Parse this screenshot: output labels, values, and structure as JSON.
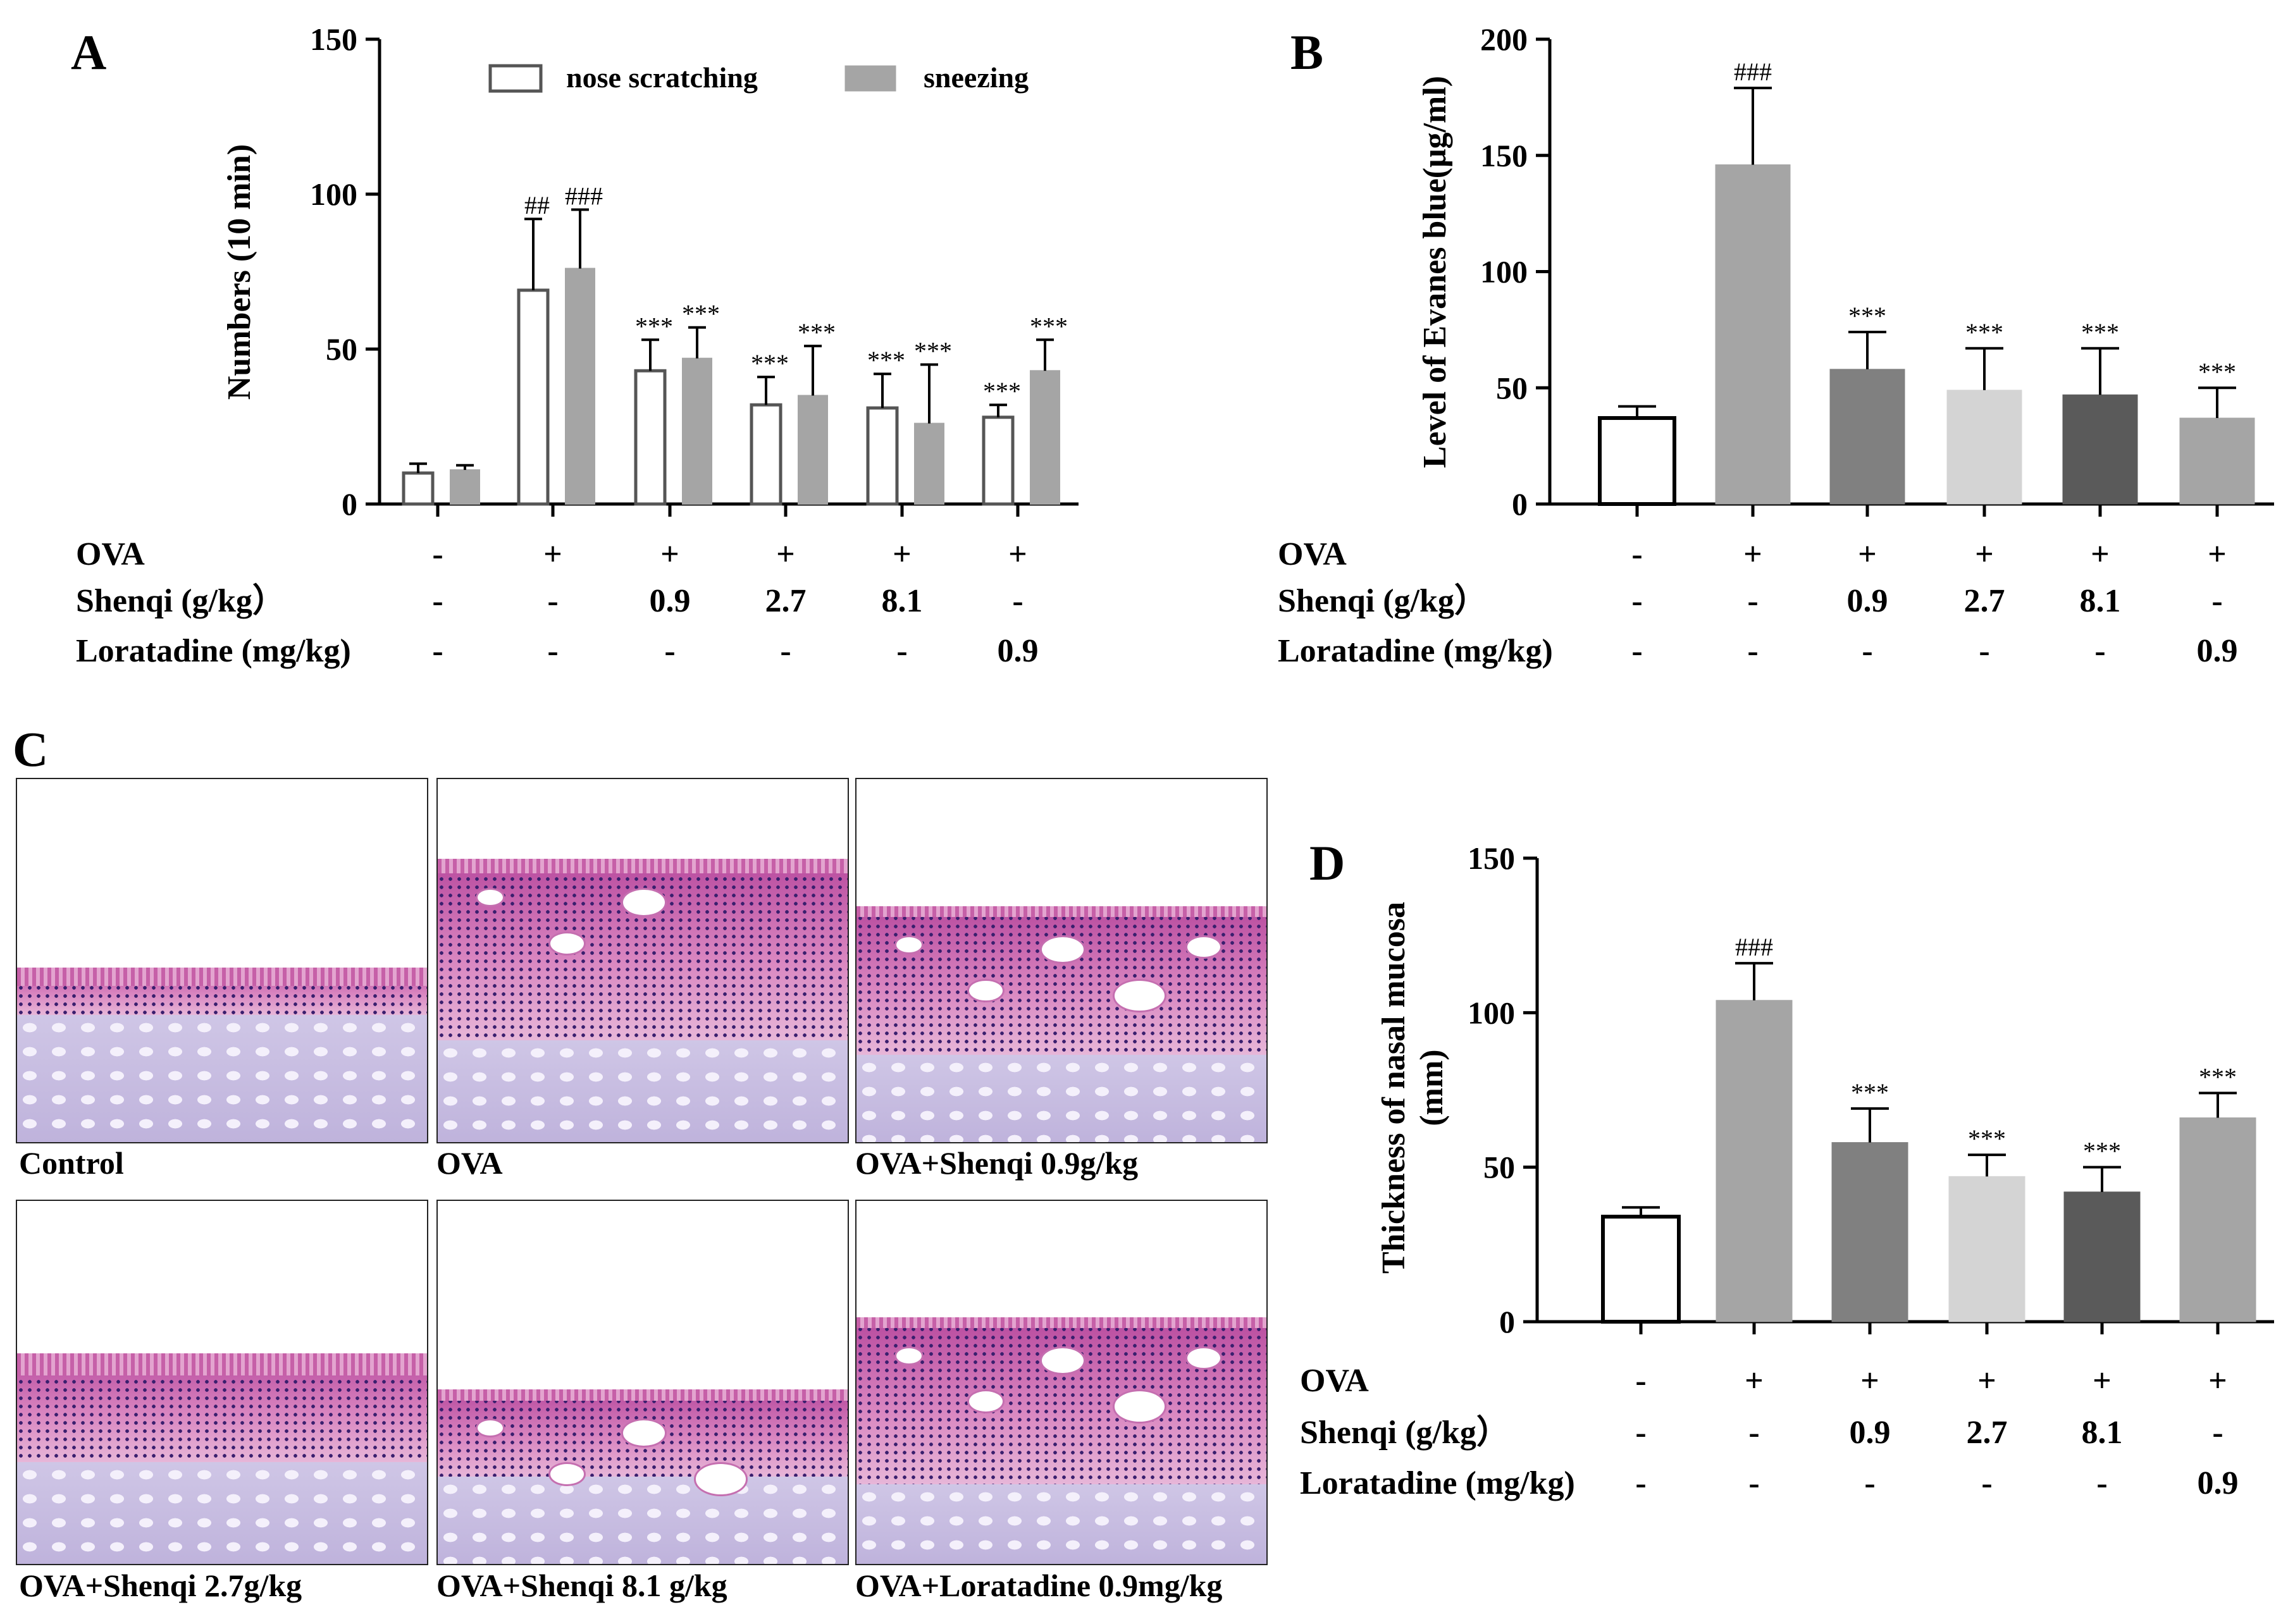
{
  "panels": {
    "a_letter": "A",
    "b_letter": "B",
    "c_letter": "C",
    "d_letter": "D"
  },
  "chart_data": [
    {
      "id": "A",
      "type": "bar",
      "title": "",
      "xlabel": "",
      "ylabel": "Numbers (10 min)",
      "ylim": [
        0,
        150
      ],
      "yticks": [
        "0",
        "50",
        "100",
        "150"
      ],
      "legend_position": "top",
      "series": [
        {
          "name": "nose scratching",
          "values": [
            10,
            69,
            43,
            32,
            31,
            28
          ],
          "errors": [
            3,
            23,
            10,
            9,
            11,
            4
          ],
          "fill": "#ffffff"
        },
        {
          "name": "sneezing",
          "values": [
            11,
            76,
            47,
            35,
            26,
            43
          ],
          "errors": [
            1.5,
            19,
            10,
            16,
            19,
            10
          ],
          "fill": "#a5a5a5"
        }
      ],
      "significance": [
        [
          "",
          ""
        ],
        [
          "##",
          "###"
        ],
        [
          "***",
          "***"
        ],
        [
          "***",
          "***"
        ],
        [
          "***",
          "***"
        ],
        [
          "***",
          "***"
        ]
      ]
    },
    {
      "id": "B",
      "type": "bar",
      "title": "",
      "xlabel": "",
      "ylabel": "Level of Evanes blue(μg/ml)",
      "ylim": [
        0,
        200
      ],
      "yticks": [
        "0",
        "50",
        "100",
        "150",
        "200"
      ],
      "series": [
        {
          "values": [
            37,
            146,
            58,
            49,
            47,
            37
          ],
          "errors": [
            5,
            33,
            16,
            18,
            20,
            13
          ],
          "fills": [
            "#ffffff",
            "#a5a5a5",
            "#808080",
            "#d4d4d4",
            "#5a5a5a",
            "#a5a5a5"
          ]
        }
      ],
      "significance": [
        "",
        "###",
        "***",
        "***",
        "***",
        "***"
      ]
    },
    {
      "id": "D",
      "type": "bar",
      "title": "",
      "xlabel": "",
      "ylabel": "Thickness of nasal mucosa\n(mm)",
      "ylabel_lines": [
        "Thickness of nasal mucosa",
        "(mm)"
      ],
      "ylim": [
        0,
        150
      ],
      "yticks": [
        "0",
        "50",
        "100",
        "150"
      ],
      "series": [
        {
          "values": [
            34,
            104,
            58,
            47,
            42,
            66
          ],
          "errors": [
            3,
            12,
            11,
            7,
            8,
            8
          ],
          "fills": [
            "#ffffff",
            "#a5a5a5",
            "#808080",
            "#d4d4d4",
            "#5a5a5a",
            "#a5a5a5"
          ]
        }
      ],
      "significance": [
        "",
        "###",
        "***",
        "***",
        "***",
        "***"
      ]
    }
  ],
  "treatment_table": {
    "rows": [
      {
        "label": "OVA",
        "values": [
          "-",
          "+",
          "+",
          "+",
          "+",
          "+"
        ]
      },
      {
        "label": "Shenqi (g/kg）",
        "values": [
          "-",
          "-",
          "0.9",
          "2.7",
          "8.1",
          "-"
        ]
      },
      {
        "label": "Loratadine (mg/kg)",
        "values": [
          "-",
          "-",
          "-",
          "-",
          "-",
          "0.9"
        ]
      }
    ]
  },
  "micrographs": {
    "captions": [
      "Control",
      "OVA",
      "OVA+Shenqi 0.9g/kg",
      "OVA+Shenqi 2.7g/kg",
      "OVA+Shenqi 8.1 g/kg",
      "OVA+Loratadine 0.9mg/kg"
    ]
  }
}
